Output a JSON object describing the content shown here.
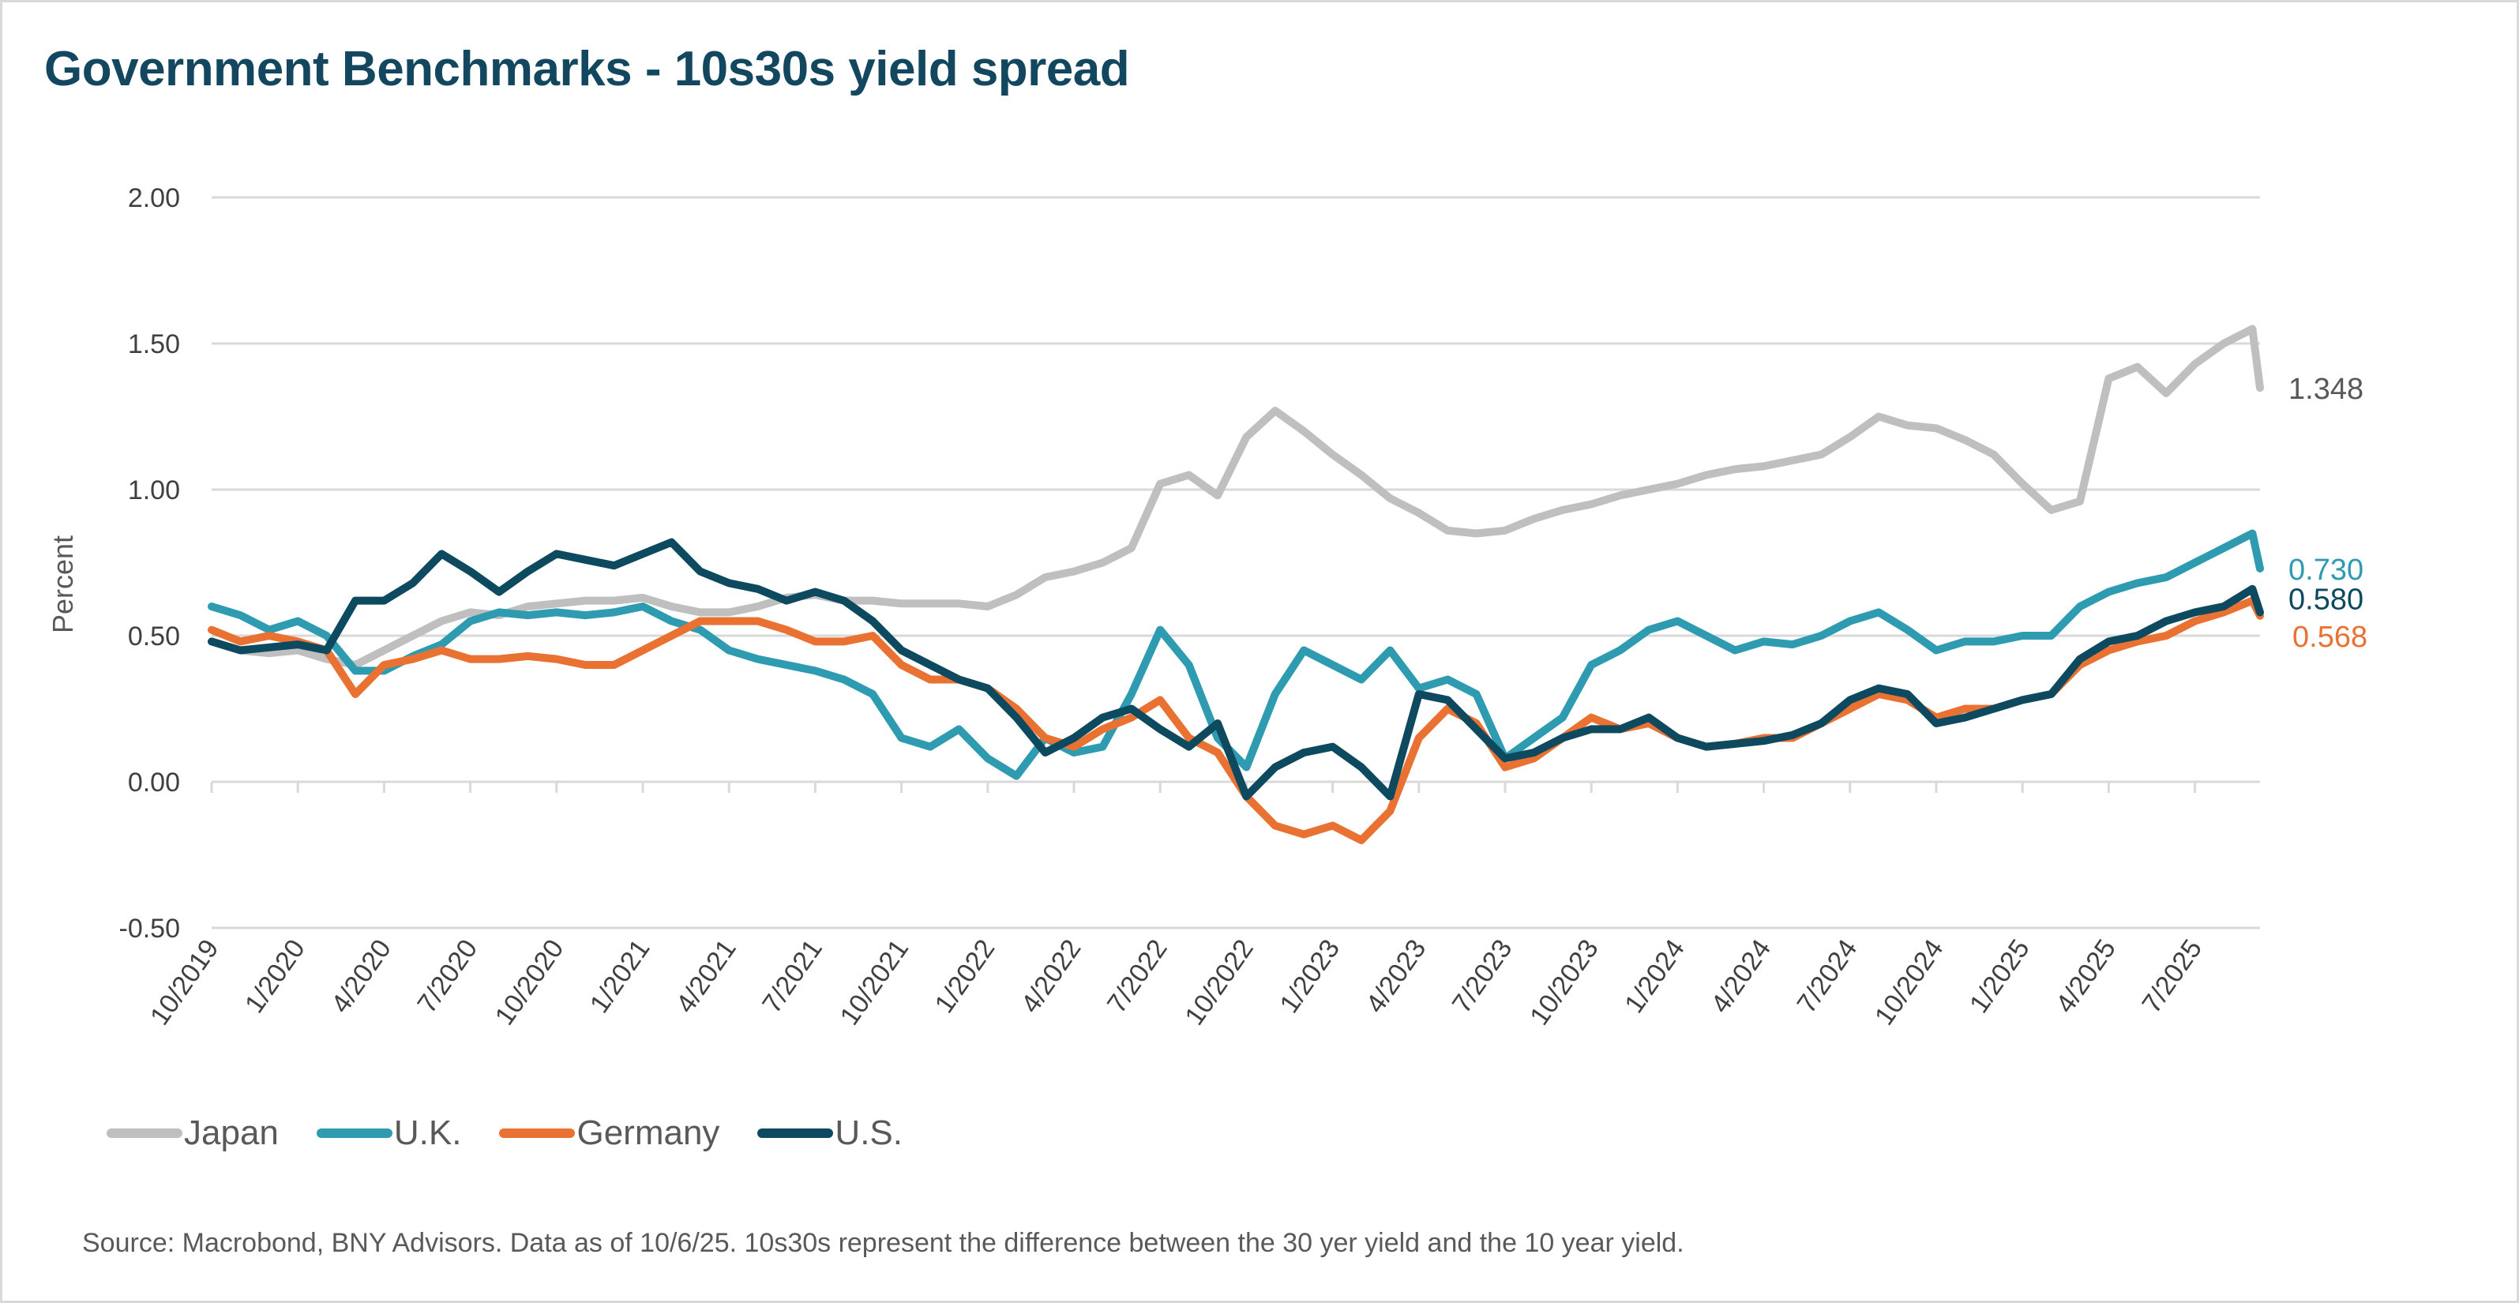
{
  "title": "Government Benchmarks - 10s30s yield spread",
  "source": "Source: Macrobond, BNY Advisors. Data as of 10/6/25. 10s30s represent the difference between the 30 yer yield and the 10 year yield.",
  "chart_data": {
    "type": "line",
    "title": "Government Benchmarks - 10s30s yield spread",
    "xlabel": "",
    "ylabel": "Percent",
    "ylim": [
      -0.5,
      2.0
    ],
    "yticks": [
      "2.00",
      "1.50",
      "1.00",
      "0.50",
      "0.00",
      "-0.50"
    ],
    "ytick_values": [
      2.0,
      1.5,
      1.0,
      0.5,
      0.0,
      -0.5
    ],
    "grid": true,
    "legend_position": "bottom-left",
    "xticks": [
      "10/2019",
      "1/2020",
      "4/2020",
      "7/2020",
      "10/2020",
      "1/2021",
      "4/2021",
      "7/2021",
      "10/2021",
      "1/2022",
      "4/2022",
      "7/2022",
      "10/2022",
      "1/2023",
      "4/2023",
      "7/2023",
      "10/2023",
      "1/2024",
      "4/2024",
      "7/2024",
      "10/2024",
      "1/2025",
      "4/2025",
      "7/2025"
    ],
    "x_start": "10/2019",
    "x_end": "10/6/2025",
    "x": [
      "10/2019",
      "11/2019",
      "12/2019",
      "1/2020",
      "2/2020",
      "3/2020",
      "4/2020",
      "5/2020",
      "6/2020",
      "7/2020",
      "8/2020",
      "9/2020",
      "10/2020",
      "11/2020",
      "12/2020",
      "1/2021",
      "2/2021",
      "3/2021",
      "4/2021",
      "5/2021",
      "6/2021",
      "7/2021",
      "8/2021",
      "9/2021",
      "10/2021",
      "11/2021",
      "12/2021",
      "1/2022",
      "2/2022",
      "3/2022",
      "4/2022",
      "5/2022",
      "6/2022",
      "7/2022",
      "8/2022",
      "9/2022",
      "10/2022",
      "11/2022",
      "12/2022",
      "1/2023",
      "2/2023",
      "3/2023",
      "4/2023",
      "5/2023",
      "6/2023",
      "7/2023",
      "8/2023",
      "9/2023",
      "10/2023",
      "11/2023",
      "12/2023",
      "1/2024",
      "2/2024",
      "3/2024",
      "4/2024",
      "5/2024",
      "6/2024",
      "7/2024",
      "8/2024",
      "9/2024",
      "10/2024",
      "11/2024",
      "12/2024",
      "1/2025",
      "2/2025",
      "3/2025",
      "4/2025",
      "5/2025",
      "6/2025",
      "7/2025",
      "8/2025",
      "9/2025",
      "10/6/2025"
    ],
    "series": [
      {
        "name": "Japan",
        "color": "#bfbfbf",
        "last_value": "1.348",
        "values": [
          0.48,
          0.45,
          0.44,
          0.45,
          0.42,
          0.4,
          0.45,
          0.5,
          0.55,
          0.58,
          0.57,
          0.6,
          0.61,
          0.62,
          0.62,
          0.63,
          0.6,
          0.58,
          0.58,
          0.6,
          0.63,
          0.64,
          0.62,
          0.62,
          0.61,
          0.61,
          0.61,
          0.6,
          0.64,
          0.7,
          0.72,
          0.75,
          0.8,
          1.02,
          1.05,
          0.98,
          1.18,
          1.27,
          1.2,
          1.12,
          1.05,
          0.97,
          0.92,
          0.86,
          0.85,
          0.86,
          0.9,
          0.93,
          0.95,
          0.98,
          1.0,
          1.02,
          1.05,
          1.07,
          1.08,
          1.1,
          1.12,
          1.18,
          1.25,
          1.22,
          1.21,
          1.17,
          1.12,
          1.02,
          0.93,
          0.96,
          1.38,
          1.42,
          1.33,
          1.43,
          1.5,
          1.55,
          1.348
        ]
      },
      {
        "name": "U.K.",
        "color": "#2e9bb0",
        "last_value": "0.730",
        "values": [
          0.6,
          0.57,
          0.52,
          0.55,
          0.5,
          0.38,
          0.38,
          0.43,
          0.47,
          0.55,
          0.58,
          0.57,
          0.58,
          0.57,
          0.58,
          0.6,
          0.55,
          0.52,
          0.45,
          0.42,
          0.4,
          0.38,
          0.35,
          0.3,
          0.15,
          0.12,
          0.18,
          0.08,
          0.02,
          0.15,
          0.1,
          0.12,
          0.3,
          0.52,
          0.4,
          0.15,
          0.05,
          0.3,
          0.45,
          0.4,
          0.35,
          0.45,
          0.32,
          0.35,
          0.3,
          0.08,
          0.15,
          0.22,
          0.4,
          0.45,
          0.52,
          0.55,
          0.5,
          0.45,
          0.48,
          0.47,
          0.5,
          0.55,
          0.58,
          0.52,
          0.45,
          0.48,
          0.48,
          0.5,
          0.5,
          0.6,
          0.65,
          0.68,
          0.7,
          0.75,
          0.8,
          0.85,
          0.73
        ]
      },
      {
        "name": "Germany",
        "color": "#e97132",
        "last_value": "0.568",
        "values": [
          0.52,
          0.48,
          0.5,
          0.48,
          0.45,
          0.3,
          0.4,
          0.42,
          0.45,
          0.42,
          0.42,
          0.43,
          0.42,
          0.4,
          0.4,
          0.45,
          0.5,
          0.55,
          0.55,
          0.55,
          0.52,
          0.48,
          0.48,
          0.5,
          0.4,
          0.35,
          0.35,
          0.32,
          0.25,
          0.15,
          0.12,
          0.18,
          0.22,
          0.28,
          0.15,
          0.1,
          -0.05,
          -0.15,
          -0.18,
          -0.15,
          -0.2,
          -0.1,
          0.15,
          0.25,
          0.2,
          0.05,
          0.08,
          0.15,
          0.22,
          0.18,
          0.2,
          0.15,
          0.12,
          0.13,
          0.15,
          0.15,
          0.2,
          0.25,
          0.3,
          0.28,
          0.22,
          0.25,
          0.25,
          0.28,
          0.3,
          0.4,
          0.45,
          0.48,
          0.5,
          0.55,
          0.58,
          0.62,
          0.568
        ]
      },
      {
        "name": "U.S.",
        "color": "#0e4a5f",
        "last_value": "0.580",
        "values": [
          0.48,
          0.45,
          0.46,
          0.47,
          0.45,
          0.62,
          0.62,
          0.68,
          0.78,
          0.72,
          0.65,
          0.72,
          0.78,
          0.76,
          0.74,
          0.78,
          0.82,
          0.72,
          0.68,
          0.66,
          0.62,
          0.65,
          0.62,
          0.55,
          0.45,
          0.4,
          0.35,
          0.32,
          0.22,
          0.1,
          0.15,
          0.22,
          0.25,
          0.18,
          0.12,
          0.2,
          -0.05,
          0.05,
          0.1,
          0.12,
          0.05,
          -0.05,
          0.3,
          0.28,
          0.18,
          0.08,
          0.1,
          0.15,
          0.18,
          0.18,
          0.22,
          0.15,
          0.12,
          0.13,
          0.14,
          0.16,
          0.2,
          0.28,
          0.32,
          0.3,
          0.2,
          0.22,
          0.25,
          0.28,
          0.3,
          0.42,
          0.48,
          0.5,
          0.55,
          0.58,
          0.6,
          0.66,
          0.58
        ]
      }
    ]
  }
}
